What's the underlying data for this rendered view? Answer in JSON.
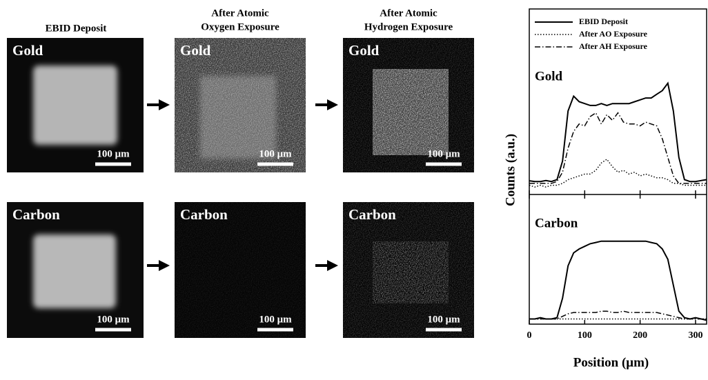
{
  "figure": {
    "columns": [
      [
        "EBID Deposit"
      ],
      [
        "After Atomic",
        "Oxygen Exposure"
      ],
      [
        "After Atomic",
        "Hydrogen Exposure"
      ]
    ],
    "panels": [
      {
        "label": "Gold",
        "scale": "100 μm"
      },
      {
        "label": "Gold",
        "scale": "100 μm"
      },
      {
        "label": "Gold",
        "scale": "100 μm"
      },
      {
        "label": "Carbon",
        "scale": "100 μm"
      },
      {
        "label": "Carbon",
        "scale": "100 μm"
      },
      {
        "label": "Carbon",
        "scale": "100 μm"
      }
    ]
  },
  "chart_data": {
    "type": "line",
    "xlabel": "Position (μm)",
    "ylabel": "Counts (a.u.)",
    "xlim": [
      0,
      320
    ],
    "xticks": [
      0,
      100,
      200,
      300
    ],
    "x": [
      0,
      10,
      20,
      30,
      40,
      50,
      60,
      70,
      80,
      90,
      100,
      110,
      120,
      130,
      140,
      150,
      160,
      170,
      180,
      190,
      200,
      210,
      220,
      230,
      240,
      250,
      260,
      270,
      280,
      290,
      300,
      310,
      320
    ],
    "series": [
      {
        "name": "EBID Deposit",
        "color": "#000000",
        "style": "solid"
      },
      {
        "name": "After AO Exposure",
        "color": "#000000",
        "style": "dotted"
      },
      {
        "name": "After AH Exposure",
        "color": "#000000",
        "style": "dashdot"
      }
    ],
    "panels": [
      {
        "label": "Gold",
        "ylim": [
          0,
          100
        ],
        "values": [
          [
            7.4,
            7,
            7,
            7.5,
            7,
            8,
            18,
            45,
            53,
            50,
            49,
            48,
            48,
            49,
            48,
            49,
            49,
            49,
            49,
            50,
            51,
            52,
            52,
            54,
            56,
            60,
            45,
            20,
            8,
            7,
            7,
            7.5,
            8
          ],
          [
            5,
            4,
            5,
            4,
            5,
            5,
            6,
            8,
            9,
            10,
            11,
            11,
            13,
            17,
            19,
            15,
            12,
            13,
            11,
            12,
            10,
            11,
            10,
            9,
            9,
            8,
            6,
            6,
            5,
            5,
            5,
            5,
            5
          ],
          [
            6,
            6,
            6,
            6,
            6,
            7,
            12,
            25,
            34,
            38,
            37,
            42,
            44,
            38,
            43,
            40,
            44,
            39,
            38,
            38,
            37,
            39,
            38,
            37,
            30,
            20,
            10,
            6,
            6,
            6,
            6,
            6,
            6
          ]
        ]
      },
      {
        "label": "Carbon",
        "ylim": [
          0,
          100
        ],
        "values": [
          [
            4,
            4,
            5,
            4,
            4,
            5,
            20,
            45,
            55,
            58,
            60,
            62,
            63,
            64,
            64,
            64,
            64,
            64,
            64,
            64,
            64,
            64,
            63,
            62,
            58,
            50,
            30,
            10,
            5,
            4,
            5,
            4,
            3
          ],
          [
            4,
            4,
            4,
            4,
            4,
            4,
            4,
            4,
            4,
            4,
            4,
            4,
            4,
            4,
            4,
            4,
            4,
            4,
            4,
            4,
            4,
            4,
            4,
            4,
            4,
            4,
            4,
            4,
            4,
            4,
            4,
            4,
            4
          ],
          [
            4,
            4,
            4,
            4,
            4,
            4,
            6,
            8,
            9,
            9,
            9,
            9,
            9,
            10,
            10,
            9,
            9,
            10,
            9,
            9,
            9,
            9,
            9,
            9,
            8,
            7,
            6,
            5,
            4,
            4,
            4,
            4,
            4
          ]
        ]
      }
    ]
  }
}
